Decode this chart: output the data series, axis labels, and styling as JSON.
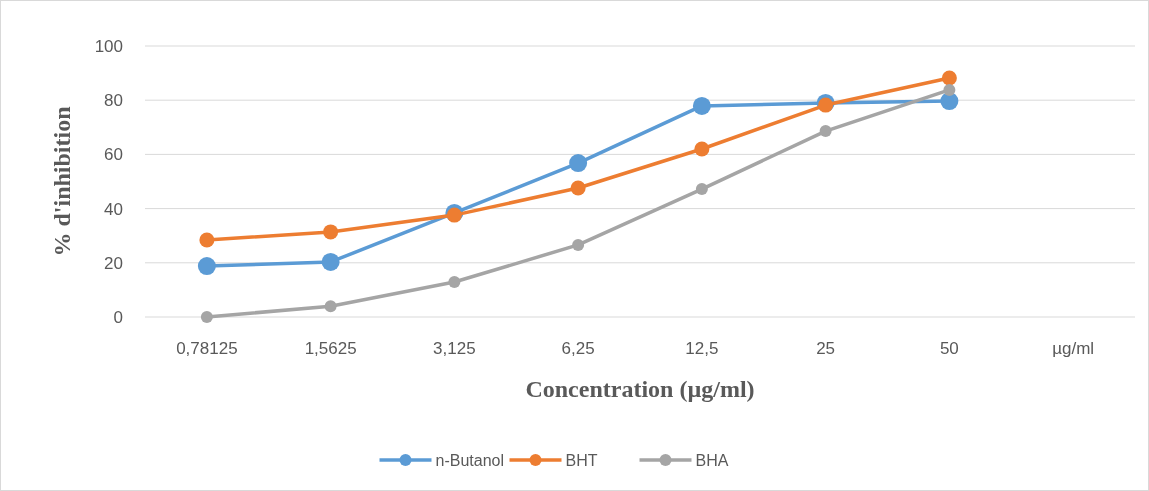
{
  "chart_data": {
    "type": "line",
    "xlabel": "Concentration (µg/ml)",
    "ylabel": "% d'inhibition",
    "categories": [
      "0,78125",
      "1,5625",
      "3,125",
      "6,25",
      "12,5",
      "25",
      "50",
      "µg/ml"
    ],
    "series": [
      {
        "name": "n-Butanol",
        "color": "#5b9bd5",
        "values": [
          18.8,
          20.3,
          38.4,
          56.8,
          77.9,
          79,
          79.7,
          null
        ]
      },
      {
        "name": "BHT",
        "color": "#ed7d31",
        "values": [
          28.4,
          31.4,
          37.6,
          47.6,
          62,
          78.2,
          88.2,
          null
        ]
      },
      {
        "name": "BHA",
        "color": "#a5a5a5",
        "values": [
          0,
          4,
          12.9,
          26.6,
          47.2,
          68.6,
          83.8,
          null
        ]
      }
    ],
    "ylim": [
      0,
      100
    ],
    "yticks": [
      0,
      20,
      40,
      60,
      80,
      100
    ],
    "grid": "y",
    "legend": "bottom",
    "marker": "circle",
    "line_style": "solid"
  }
}
